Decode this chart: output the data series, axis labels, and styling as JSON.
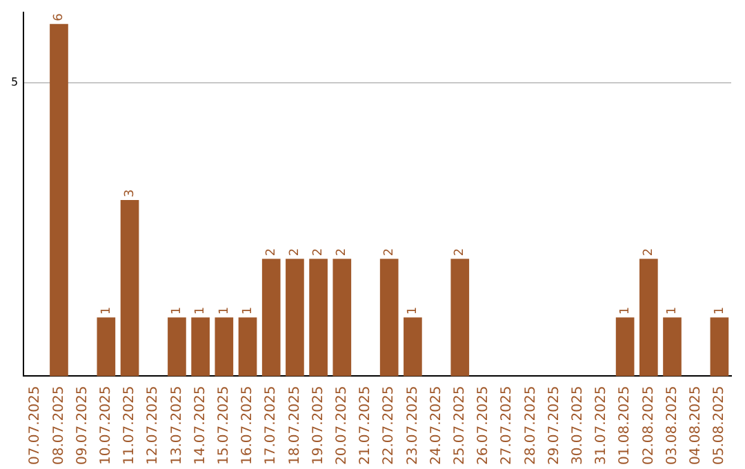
{
  "chart_data": {
    "type": "bar",
    "categories": [
      "07.07.2025",
      "08.07.2025",
      "09.07.2025",
      "10.07.2025",
      "11.07.2025",
      "12.07.2025",
      "13.07.2025",
      "14.07.2025",
      "15.07.2025",
      "16.07.2025",
      "17.07.2025",
      "18.07.2025",
      "19.07.2025",
      "20.07.2025",
      "21.07.2025",
      "22.07.2025",
      "23.07.2025",
      "24.07.2025",
      "25.07.2025",
      "26.07.2025",
      "27.07.2025",
      "28.07.2025",
      "29.07.2025",
      "30.07.2025",
      "31.07.2025",
      "01.08.2025",
      "02.08.2025",
      "03.08.2025",
      "04.08.2025",
      "05.08.2025"
    ],
    "values": [
      0,
      6,
      0,
      1,
      3,
      0,
      1,
      1,
      1,
      1,
      2,
      2,
      2,
      2,
      0,
      2,
      1,
      0,
      2,
      0,
      0,
      0,
      0,
      0,
      0,
      1,
      2,
      1,
      0,
      1
    ],
    "value_labels": [
      null,
      "6",
      null,
      "1",
      "3",
      null,
      "1",
      "1",
      "1",
      "1",
      "2",
      "2",
      "2",
      "2",
      null,
      "2",
      "1",
      null,
      "2",
      null,
      null,
      null,
      null,
      null,
      null,
      "1",
      "2",
      "1",
      null,
      "1"
    ],
    "color": "#a0582a",
    "ylim": [
      0,
      6.2
    ],
    "yticks": [
      5
    ],
    "grid": "y"
  }
}
